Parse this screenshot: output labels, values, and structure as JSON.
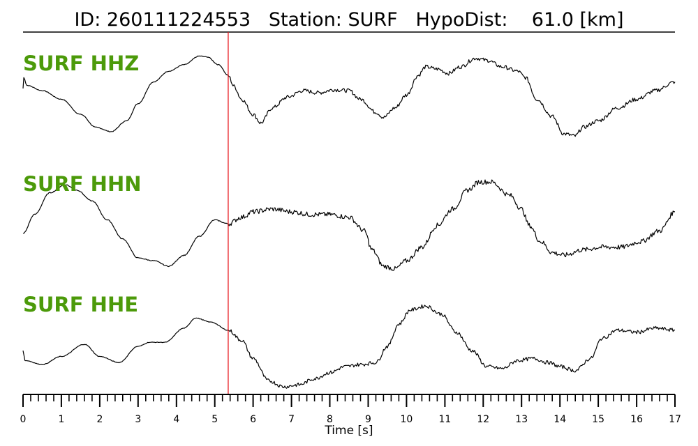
{
  "title": {
    "id_label": "ID:",
    "id_value": "260111224553",
    "station_label": "Station:",
    "station_value": "SURF",
    "hypodist_label": "HypoDist:",
    "hypodist_value": "61.0",
    "hypodist_unit": "[km]"
  },
  "colors": {
    "trace": "#000000",
    "label": "#4c9a0a",
    "marker": "#e8161b",
    "axis": "#000000"
  },
  "chart_data": {
    "type": "line",
    "xlabel": "Time [s]",
    "xlim": [
      0,
      17
    ],
    "major_ticks": [
      0,
      1,
      2,
      3,
      4,
      5,
      6,
      7,
      8,
      9,
      10,
      11,
      12,
      13,
      14,
      15,
      16,
      17
    ],
    "minor_tick_step": 0.2,
    "phase_pick_time": 5.35,
    "grid": false,
    "legend": "none",
    "y_units": "normalized amplitude (-1 to 1)",
    "series": [
      {
        "name": "SURF HHZ",
        "points": [
          [
            0.0,
            0.05
          ],
          [
            0.02,
            0.3
          ],
          [
            0.1,
            0.12
          ],
          [
            0.5,
            0.0
          ],
          [
            1.0,
            -0.2
          ],
          [
            1.5,
            -0.55
          ],
          [
            1.9,
            -0.85
          ],
          [
            2.3,
            -0.95
          ],
          [
            2.7,
            -0.7
          ],
          [
            3.0,
            -0.3
          ],
          [
            3.4,
            0.2
          ],
          [
            3.8,
            0.45
          ],
          [
            4.2,
            0.6
          ],
          [
            4.6,
            0.8
          ],
          [
            4.8,
            0.78
          ],
          [
            5.1,
            0.6
          ],
          [
            5.35,
            0.35
          ],
          [
            5.5,
            0.1
          ],
          [
            5.7,
            -0.2
          ],
          [
            6.0,
            -0.55
          ],
          [
            6.2,
            -0.75
          ],
          [
            6.5,
            -0.4
          ],
          [
            6.9,
            -0.15
          ],
          [
            7.3,
            0.0
          ],
          [
            7.7,
            -0.05
          ],
          [
            8.1,
            0.02
          ],
          [
            8.5,
            0.0
          ],
          [
            8.8,
            -0.2
          ],
          [
            9.2,
            -0.5
          ],
          [
            9.4,
            -0.62
          ],
          [
            9.7,
            -0.4
          ],
          [
            10.0,
            -0.1
          ],
          [
            10.3,
            0.35
          ],
          [
            10.5,
            0.55
          ],
          [
            10.8,
            0.5
          ],
          [
            11.1,
            0.4
          ],
          [
            11.4,
            0.55
          ],
          [
            11.8,
            0.75
          ],
          [
            12.1,
            0.7
          ],
          [
            12.5,
            0.55
          ],
          [
            12.9,
            0.45
          ],
          [
            13.1,
            0.3
          ],
          [
            13.4,
            -0.2
          ],
          [
            13.8,
            -0.6
          ],
          [
            14.1,
            -1.0
          ],
          [
            14.4,
            -1.05
          ],
          [
            14.6,
            -0.85
          ],
          [
            15.0,
            -0.7
          ],
          [
            15.5,
            -0.4
          ],
          [
            16.0,
            -0.2
          ],
          [
            16.5,
            0.0
          ],
          [
            17.0,
            0.2
          ]
        ]
      },
      {
        "name": "SURF HHN",
        "points": [
          [
            0.0,
            -0.45
          ],
          [
            0.3,
            -0.1
          ],
          [
            0.7,
            0.3
          ],
          [
            1.1,
            0.45
          ],
          [
            1.4,
            0.35
          ],
          [
            1.8,
            0.15
          ],
          [
            2.2,
            -0.2
          ],
          [
            2.6,
            -0.55
          ],
          [
            3.0,
            -0.9
          ],
          [
            3.4,
            -0.95
          ],
          [
            3.8,
            -1.05
          ],
          [
            4.2,
            -0.85
          ],
          [
            4.6,
            -0.5
          ],
          [
            5.0,
            -0.2
          ],
          [
            5.35,
            -0.27
          ],
          [
            5.7,
            -0.15
          ],
          [
            6.0,
            -0.05
          ],
          [
            6.5,
            0.0
          ],
          [
            7.0,
            -0.05
          ],
          [
            7.5,
            -0.1
          ],
          [
            8.0,
            -0.1
          ],
          [
            8.5,
            -0.15
          ],
          [
            8.9,
            -0.4
          ],
          [
            9.1,
            -0.75
          ],
          [
            9.4,
            -1.05
          ],
          [
            9.7,
            -1.1
          ],
          [
            10.0,
            -0.95
          ],
          [
            10.4,
            -0.7
          ],
          [
            10.8,
            -0.3
          ],
          [
            11.2,
            0.0
          ],
          [
            11.6,
            0.35
          ],
          [
            11.9,
            0.5
          ],
          [
            12.2,
            0.5
          ],
          [
            12.7,
            0.25
          ],
          [
            13.0,
            0.0
          ],
          [
            13.2,
            -0.3
          ],
          [
            13.5,
            -0.6
          ],
          [
            13.8,
            -0.8
          ],
          [
            14.1,
            -0.85
          ],
          [
            14.6,
            -0.75
          ],
          [
            15.1,
            -0.7
          ],
          [
            15.6,
            -0.7
          ],
          [
            16.1,
            -0.6
          ],
          [
            16.6,
            -0.4
          ],
          [
            17.0,
            -0.05
          ]
        ]
      },
      {
        "name": "SURF HHE",
        "points": [
          [
            0.0,
            -0.6
          ],
          [
            0.05,
            -0.85
          ],
          [
            0.5,
            -0.95
          ],
          [
            1.0,
            -0.75
          ],
          [
            1.6,
            -0.45
          ],
          [
            2.0,
            -0.75
          ],
          [
            2.5,
            -0.9
          ],
          [
            3.0,
            -0.5
          ],
          [
            3.3,
            -0.4
          ],
          [
            3.7,
            -0.4
          ],
          [
            4.2,
            -0.05
          ],
          [
            4.5,
            0.2
          ],
          [
            4.9,
            0.1
          ],
          [
            5.35,
            -0.1
          ],
          [
            5.7,
            -0.35
          ],
          [
            6.0,
            -0.8
          ],
          [
            6.4,
            -1.35
          ],
          [
            6.8,
            -1.5
          ],
          [
            7.2,
            -1.45
          ],
          [
            7.6,
            -1.3
          ],
          [
            8.0,
            -1.15
          ],
          [
            8.4,
            -1.0
          ],
          [
            8.8,
            -0.95
          ],
          [
            9.2,
            -0.9
          ],
          [
            9.5,
            -0.5
          ],
          [
            9.8,
            0.05
          ],
          [
            10.1,
            0.4
          ],
          [
            10.5,
            0.5
          ],
          [
            10.9,
            0.3
          ],
          [
            11.3,
            -0.15
          ],
          [
            11.7,
            -0.6
          ],
          [
            12.1,
            -1.0
          ],
          [
            12.5,
            -1.05
          ],
          [
            12.9,
            -0.85
          ],
          [
            13.3,
            -0.8
          ],
          [
            13.7,
            -0.9
          ],
          [
            14.0,
            -1.0
          ],
          [
            14.4,
            -1.1
          ],
          [
            14.8,
            -0.8
          ],
          [
            15.1,
            -0.3
          ],
          [
            15.5,
            -0.1
          ],
          [
            16.0,
            -0.15
          ],
          [
            16.5,
            -0.05
          ],
          [
            17.0,
            -0.1
          ]
        ]
      }
    ]
  }
}
